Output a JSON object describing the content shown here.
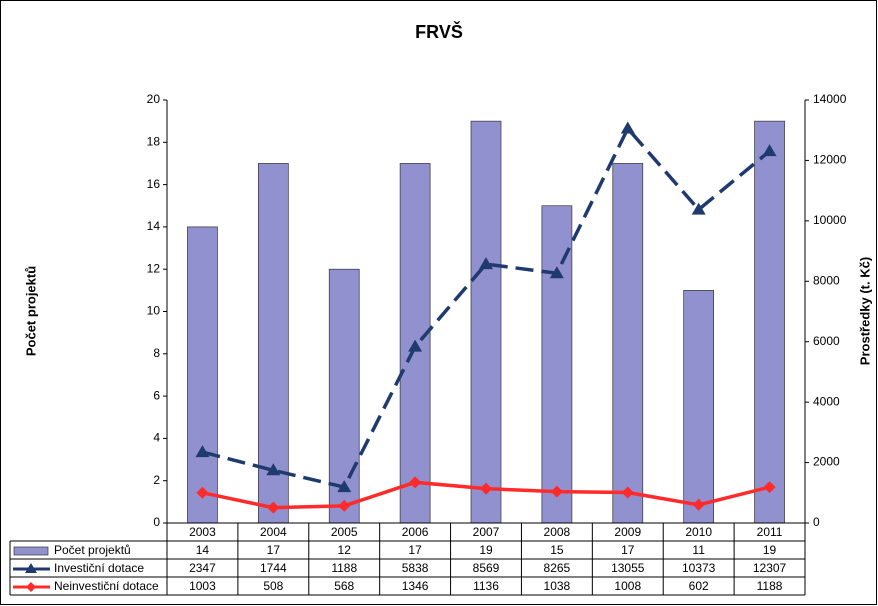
{
  "chart_data": {
    "type": "bar-line",
    "title": "FRVŠ",
    "ylabel": "Počet projektů",
    "y2label": "Prostředky (t. Kč)",
    "categories": [
      "2003",
      "2004",
      "2005",
      "2006",
      "2007",
      "2008",
      "2009",
      "2010",
      "2011"
    ],
    "series": [
      {
        "name": "Počet projektů",
        "type": "bar",
        "color": "#9191cf",
        "values": [
          14,
          17,
          12,
          17,
          19,
          15,
          17,
          11,
          19
        ]
      },
      {
        "name": "Investiční dotace",
        "type": "line",
        "axis": "y2",
        "color": "#1f3a6e",
        "dashed": true,
        "marker": "triangle",
        "values": [
          2347,
          1744,
          1188,
          5838,
          8569,
          8265,
          13055,
          10373,
          12307
        ]
      },
      {
        "name": "Neinvestiční dotace",
        "type": "line",
        "axis": "y2",
        "color": "#ff2a2a",
        "dashed": false,
        "marker": "diamond",
        "values": [
          1003,
          508,
          568,
          1346,
          1136,
          1038,
          1008,
          602,
          1188
        ]
      }
    ],
    "ylim": [
      0,
      20
    ],
    "yticks": [
      0,
      2,
      4,
      6,
      8,
      10,
      12,
      14,
      16,
      18,
      20
    ],
    "y2lim": [
      0,
      14000
    ],
    "y2ticks": [
      0,
      2000,
      4000,
      6000,
      8000,
      10000,
      12000,
      14000
    ],
    "grid": false,
    "data_table": true
  }
}
